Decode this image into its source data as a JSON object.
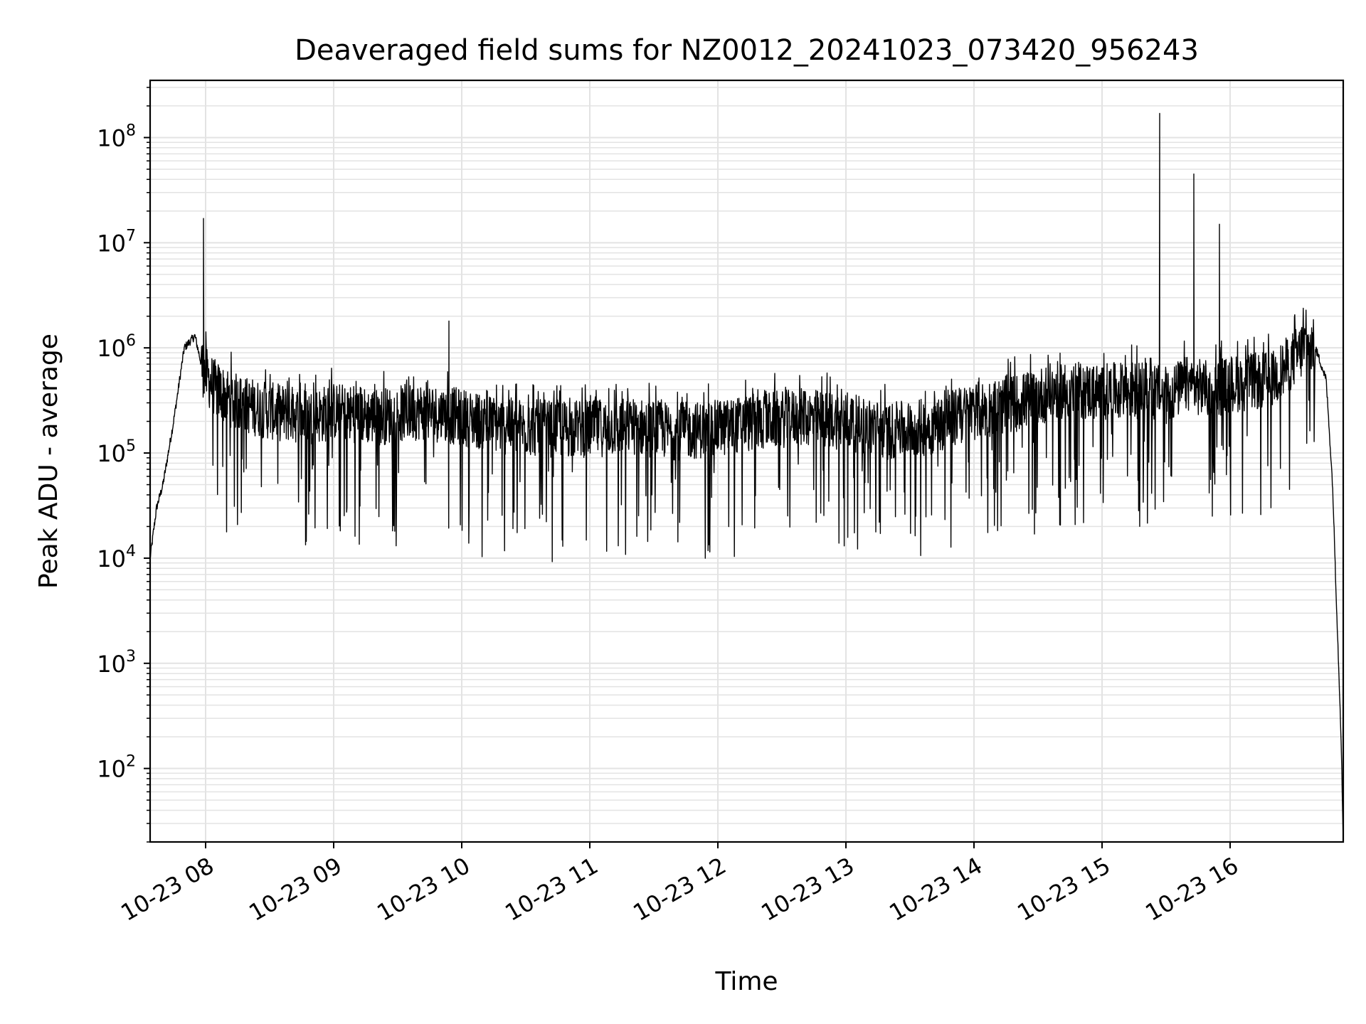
{
  "chart_data": {
    "type": "line",
    "title": "Deaveraged field sums for NZ0012_20241023_073420_956243",
    "xlabel": "Time",
    "ylabel": "Peak ADU - average",
    "yscale": "log",
    "grid": true,
    "legend": "none",
    "line_color": "#000000",
    "grid_color": "#e3e3e3",
    "xlim": [
      "2024-10-23 07:34",
      "2024-10-23 16:53"
    ],
    "ylim": [
      20,
      350000000
    ],
    "x_ticks": [
      "10-23 08",
      "10-23 09",
      "10-23 10",
      "10-23 11",
      "10-23 12",
      "10-23 13",
      "10-23 14",
      "10-23 15",
      "10-23 16"
    ],
    "y_ticks": [
      {
        "base": "10",
        "exp": "2",
        "value": 100
      },
      {
        "base": "10",
        "exp": "3",
        "value": 1000
      },
      {
        "base": "10",
        "exp": "4",
        "value": 10000
      },
      {
        "base": "10",
        "exp": "5",
        "value": 100000
      },
      {
        "base": "10",
        "exp": "6",
        "value": 1000000
      },
      {
        "base": "10",
        "exp": "7",
        "value": 10000000
      },
      {
        "base": "10",
        "exp": "8",
        "value": 100000000
      }
    ],
    "series": [
      {
        "x": [
          "2024-10-23 07:34",
          "2024-10-23 07:37",
          "2024-10-23 07:40",
          "2024-10-23 07:45",
          "2024-10-23 07:50",
          "2024-10-23 07:55",
          "2024-10-23 07:58",
          "2024-10-23 07:59",
          "2024-10-23 08:00",
          "2024-10-23 08:05",
          "2024-10-23 08:15",
          "2024-10-23 08:30",
          "2024-10-23 08:50",
          "2024-10-23 09:00",
          "2024-10-23 09:20",
          "2024-10-23 09:40",
          "2024-10-23 09:54",
          "2024-10-23 10:00",
          "2024-10-23 10:20",
          "2024-10-23 10:40",
          "2024-10-23 11:00",
          "2024-10-23 11:20",
          "2024-10-23 11:40",
          "2024-10-23 12:00",
          "2024-10-23 12:20",
          "2024-10-23 12:40",
          "2024-10-23 13:00",
          "2024-10-23 13:20",
          "2024-10-23 13:40",
          "2024-10-23 14:00",
          "2024-10-23 14:20",
          "2024-10-23 14:40",
          "2024-10-23 15:00",
          "2024-10-23 15:20",
          "2024-10-23 15:27",
          "2024-10-23 15:30",
          "2024-10-23 15:40",
          "2024-10-23 15:43",
          "2024-10-23 15:50",
          "2024-10-23 15:55",
          "2024-10-23 16:00",
          "2024-10-23 16:20",
          "2024-10-23 16:35",
          "2024-10-23 16:40",
          "2024-10-23 16:45",
          "2024-10-23 16:48",
          "2024-10-23 16:50",
          "2024-10-23 16:52",
          "2024-10-23 16:53"
        ],
        "y": [
          10000,
          30000,
          50000,
          200000,
          1000000,
          1300000,
          700000,
          17000000,
          550000,
          400000,
          300000,
          250000,
          220000,
          250000,
          220000,
          250000,
          1800000,
          220000,
          180000,
          170000,
          170000,
          180000,
          160000,
          170000,
          200000,
          220000,
          200000,
          160000,
          180000,
          250000,
          300000,
          400000,
          380000,
          400000,
          170000000,
          350000,
          450000,
          45000000,
          400000,
          15000000,
          450000,
          500000,
          1000000,
          1000000,
          500000,
          50000,
          3000,
          200,
          20
        ]
      }
    ]
  }
}
